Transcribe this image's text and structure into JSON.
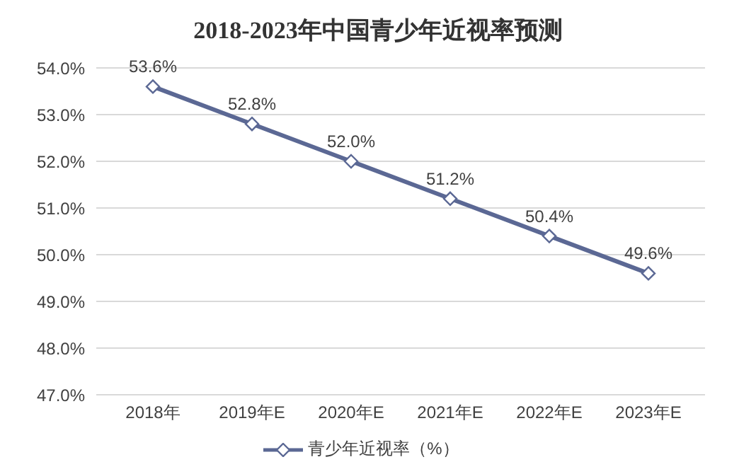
{
  "chart_data": {
    "type": "line",
    "title": "2018-2023年中国青少年近视率预测",
    "categories": [
      "2018年",
      "2019年E",
      "2020年E",
      "2021年E",
      "2022年E",
      "2023年E"
    ],
    "series": [
      {
        "name": "青少年近视率（%）",
        "color": "#5b6894",
        "values": [
          53.6,
          52.8,
          52.0,
          51.2,
          50.4,
          49.6
        ],
        "value_labels": [
          "53.6%",
          "52.8%",
          "52.0%",
          "51.2%",
          "50.4%",
          "49.6%"
        ]
      }
    ],
    "ylim": [
      47,
      54
    ],
    "yticks": [
      {
        "value": 47,
        "label": "47.0%"
      },
      {
        "value": 48,
        "label": "48.0%"
      },
      {
        "value": 49,
        "label": "49.0%"
      },
      {
        "value": 50,
        "label": "50.0%"
      },
      {
        "value": 51,
        "label": "51.0%"
      },
      {
        "value": 52,
        "label": "52.0%"
      },
      {
        "value": 53,
        "label": "53.0%"
      },
      {
        "value": 54,
        "label": "54.0%"
      }
    ],
    "grid": "y",
    "legend": "bottom",
    "marker": "diamond",
    "line_style": "solid"
  }
}
